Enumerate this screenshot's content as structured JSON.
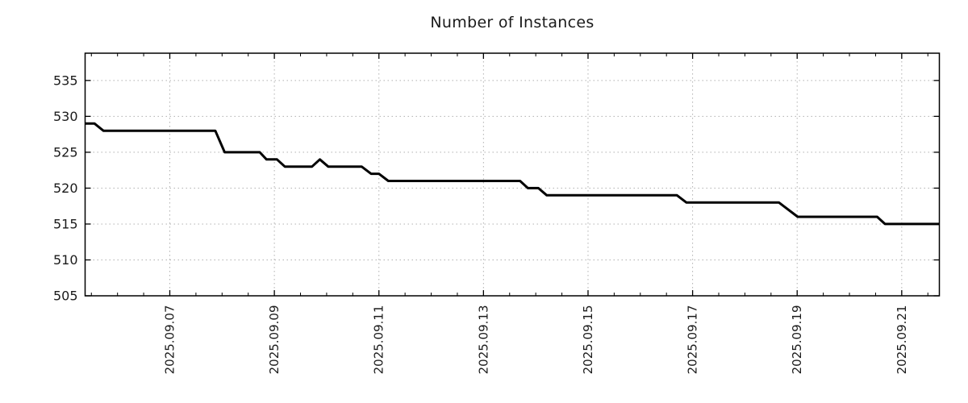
{
  "chart_data": {
    "type": "line",
    "title": "Number of Instances",
    "legend": false,
    "grid": true,
    "background": "#ffffff",
    "line_color": "#000000",
    "line_width": 3,
    "grid_color": "#b0b0b0",
    "axis_color": "#000000",
    "text_color": "#1a1a1a",
    "x_axis": {
      "kind": "time",
      "label": "",
      "range_day_of_2025_09": [
        5.38,
        21.72
      ],
      "minor_tick_interval_days": 0.5,
      "major_ticks": [
        {
          "t": 7,
          "label": "2025.09.07"
        },
        {
          "t": 9,
          "label": "2025.09.09"
        },
        {
          "t": 11,
          "label": "2025.09.11"
        },
        {
          "t": 13,
          "label": "2025.09.13"
        },
        {
          "t": 15,
          "label": "2025.09.15"
        },
        {
          "t": 17,
          "label": "2025.09.17"
        },
        {
          "t": 19,
          "label": "2025.09.19"
        },
        {
          "t": 21,
          "label": "2025.09.21"
        }
      ]
    },
    "y_axis": {
      "label": "",
      "range": [
        505,
        538.8
      ],
      "ticks": [
        505,
        510,
        515,
        520,
        525,
        530,
        535
      ]
    },
    "series": [
      {
        "name": "instances",
        "color": "#000000",
        "points_t_v": [
          [
            5.38,
            529
          ],
          [
            5.56,
            529
          ],
          [
            5.73,
            528
          ],
          [
            7.87,
            528
          ],
          [
            8.05,
            525
          ],
          [
            8.72,
            525
          ],
          [
            8.85,
            524
          ],
          [
            9.05,
            524
          ],
          [
            9.2,
            523
          ],
          [
            9.72,
            523
          ],
          [
            9.87,
            524
          ],
          [
            10.03,
            523
          ],
          [
            10.67,
            523
          ],
          [
            10.85,
            522
          ],
          [
            11.0,
            522
          ],
          [
            11.18,
            521
          ],
          [
            13.7,
            521
          ],
          [
            13.85,
            520
          ],
          [
            14.05,
            520
          ],
          [
            14.21,
            519
          ],
          [
            16.7,
            519
          ],
          [
            16.88,
            518
          ],
          [
            18.65,
            518
          ],
          [
            19.01,
            516
          ],
          [
            20.53,
            516
          ],
          [
            20.68,
            515
          ],
          [
            21.72,
            515
          ]
        ]
      }
    ]
  }
}
